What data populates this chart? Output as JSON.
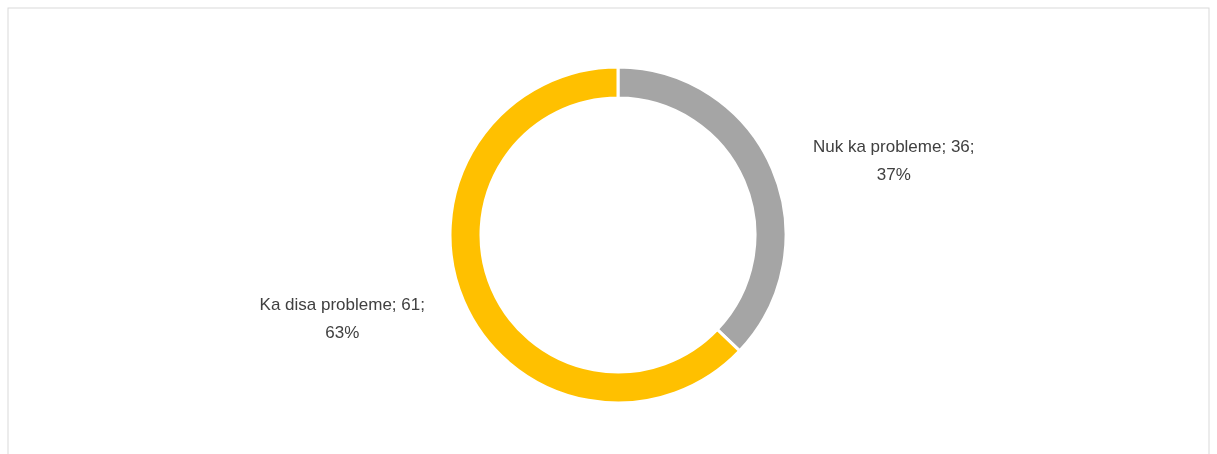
{
  "chart_data": {
    "type": "donut",
    "categories": [
      "Nuk ka probleme",
      "Ka disa probleme"
    ],
    "values": [
      36,
      61
    ],
    "colors": [
      "#a5a5a5",
      "#ffc000"
    ],
    "value_labels": [
      "36; 37%",
      "61; 63%"
    ],
    "legend": false
  }
}
